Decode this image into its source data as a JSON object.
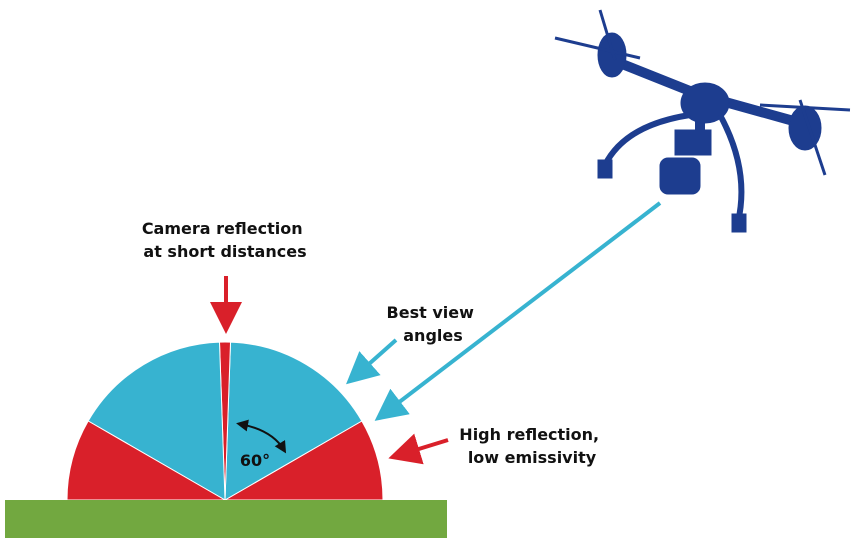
{
  "labels": {
    "camera_reflection": {
      "lines": [
        "Camera reflection",
        "at short distances"
      ]
    },
    "best_view": {
      "lines": [
        "Best view",
        "angles"
      ]
    },
    "high_reflection": {
      "lines": [
        "High reflection,",
        "low emissivity"
      ]
    },
    "angle": "60°"
  }
}
